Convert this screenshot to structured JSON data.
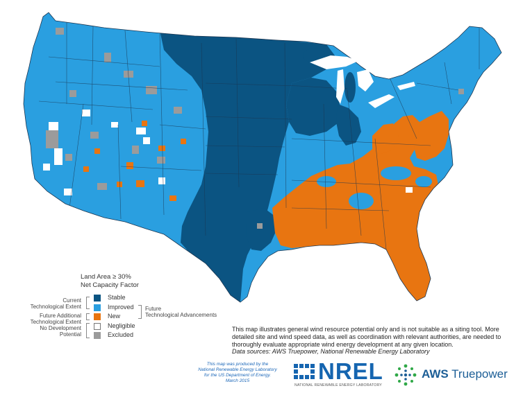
{
  "colors": {
    "stable": "#0b5482",
    "improved": "#2a9fe0",
    "new": "#e87511",
    "negligible": "#ffffff",
    "excluded": "#9b9b9b",
    "state_borders": "#1b3550",
    "nrel_blue": "#1565b0",
    "aws_green": "#2fa847"
  },
  "legend": {
    "title_line1": "Land Area ≥ 30%",
    "title_line2": "Net Capacity Factor",
    "items": [
      {
        "label": "Stable",
        "icon": "dark-blue-square"
      },
      {
        "label": "Improved",
        "icon": "light-blue-square"
      },
      {
        "label": "New",
        "icon": "orange-square"
      },
      {
        "label": "Negligible",
        "icon": "white-square"
      },
      {
        "label": "Excluded",
        "icon": "gray-square"
      }
    ],
    "groups": {
      "current_line1": "Current",
      "current_line2": "Technological Extent",
      "future_additional_line1": "Future Additional",
      "future_additional_line2": "Technological Extent",
      "no_development_line1": "No Development",
      "no_development_line2": "Potential",
      "future_advancements_line1": "Future",
      "future_advancements_line2": "Technological Advancements"
    }
  },
  "note": {
    "text": "This map illustrates general wind resource potential only and is not suitable as a siting tool.  More detailed site and wind speed data, as well as coordination with relevant authorities, are needed to thoroughly evaluate appropriate wind energy development at any given location.",
    "sources": "Data sources: AWS Truepower, National Renewable Energy Laboratory"
  },
  "credit": {
    "line1": "This map was produced by the",
    "line2": "National Renewable Energy Laboratory",
    "line3": "for the US Department of Energy.",
    "line4": "March 2015"
  },
  "logos": {
    "nrel": "NREL",
    "nrel_sub": "NATIONAL RENEWABLE ENERGY LABORATORY",
    "aws_bold": "AWS",
    "aws_rest": " Truepower"
  }
}
